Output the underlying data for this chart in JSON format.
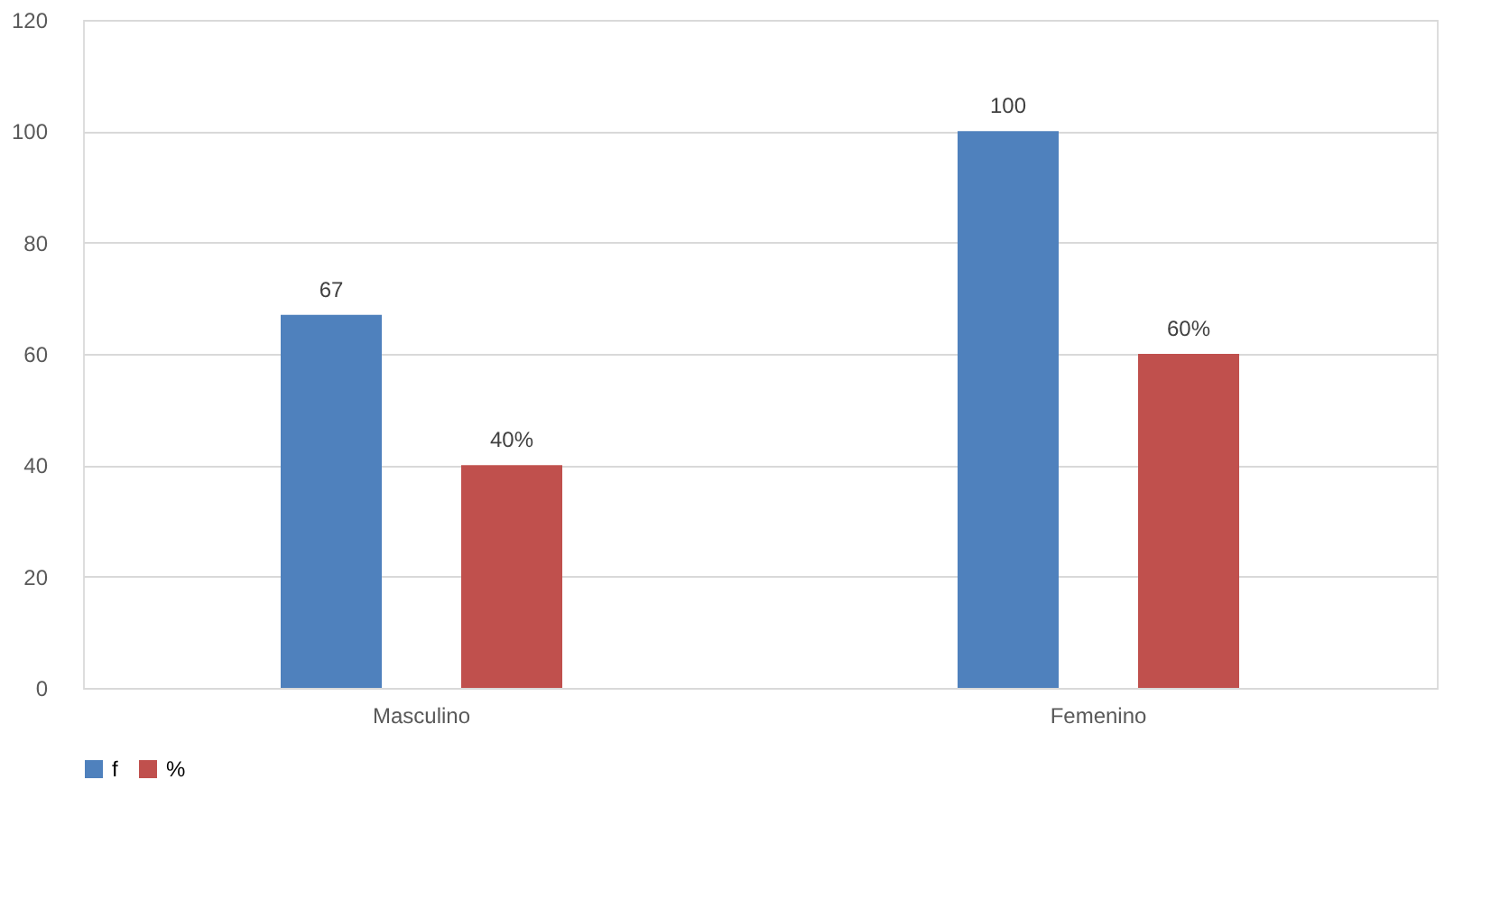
{
  "chart_data": {
    "type": "bar",
    "categories": [
      "Masculino",
      "Femenino"
    ],
    "series": [
      {
        "name": "f",
        "color": "#4f81bd",
        "values": [
          67,
          100
        ],
        "value_labels": [
          "67",
          "100"
        ]
      },
      {
        "name": "%",
        "color": "#c0504d",
        "values": [
          40,
          60
        ],
        "value_labels": [
          "40%",
          "60%"
        ]
      }
    ],
    "ylim": [
      0,
      120
    ],
    "yticks": [
      0,
      20,
      40,
      60,
      80,
      100,
      120
    ],
    "grid": "y",
    "legend": "bottom"
  }
}
